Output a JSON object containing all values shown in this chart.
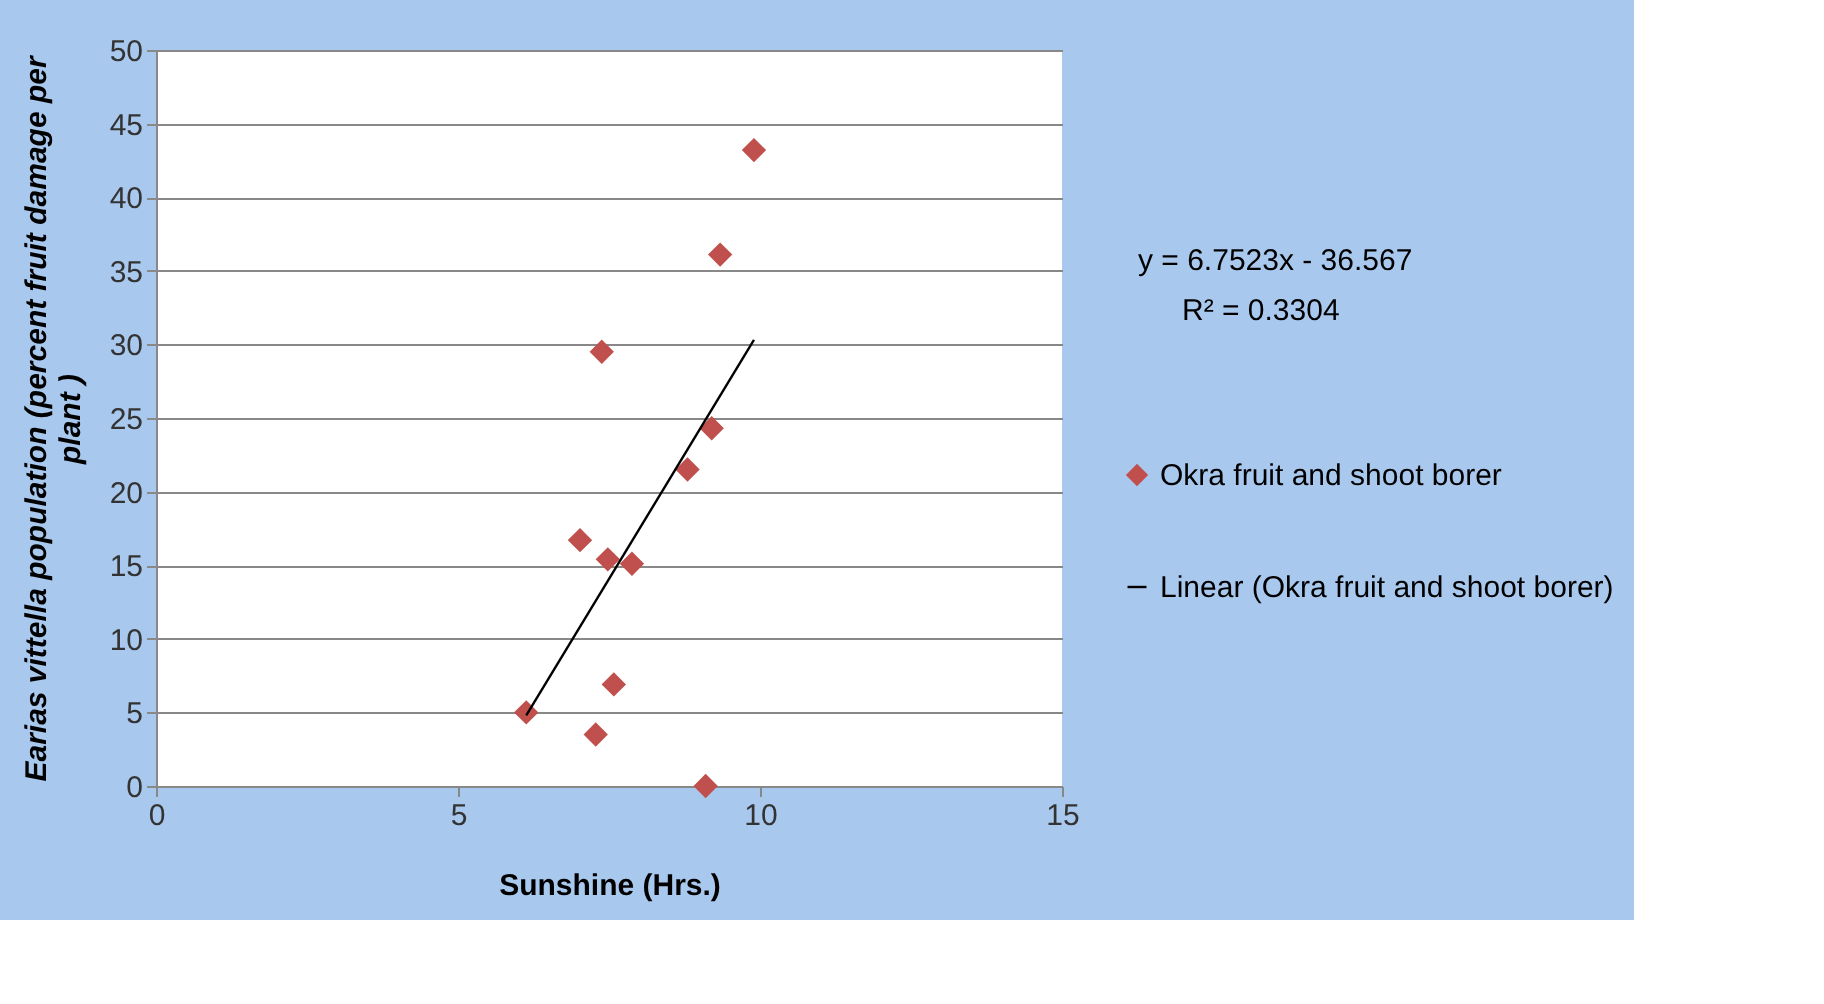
{
  "chart_data": {
    "type": "scatter",
    "xlabel": "Sunshine (Hrs.)",
    "ylabel": "Earias vittella population (percent fruit damage per plant )",
    "xlim": [
      0,
      15
    ],
    "xticks": [
      0,
      5,
      10,
      15
    ],
    "ylim": [
      0,
      50
    ],
    "yticks": [
      0,
      5,
      10,
      15,
      20,
      25,
      30,
      35,
      40,
      45,
      50
    ],
    "grid": "y",
    "legend": "right",
    "series": [
      {
        "name": "Okra fruit and shoot borer",
        "type": "scatter",
        "marker": "diamond",
        "color": "#c0504d",
        "x": [
          9.9,
          9.34,
          7.38,
          9.2,
          8.8,
          7.02,
          7.48,
          7.88,
          7.58,
          6.13,
          7.28,
          9.1
        ],
        "values": [
          43.2,
          36.1,
          29.5,
          24.3,
          21.5,
          16.7,
          15.4,
          15.1,
          6.9,
          5.0,
          3.5,
          0
        ]
      },
      {
        "name": "Linear (Okra fruit and shoot borer)",
        "type": "line",
        "color": "#000000",
        "line_style": "solid",
        "x": [
          6.13,
          9.9
        ],
        "values": [
          4.8,
          30.3
        ]
      }
    ],
    "annotations": [
      "y = 6.7523x - 36.567",
      "R² = 0.3304"
    ]
  }
}
